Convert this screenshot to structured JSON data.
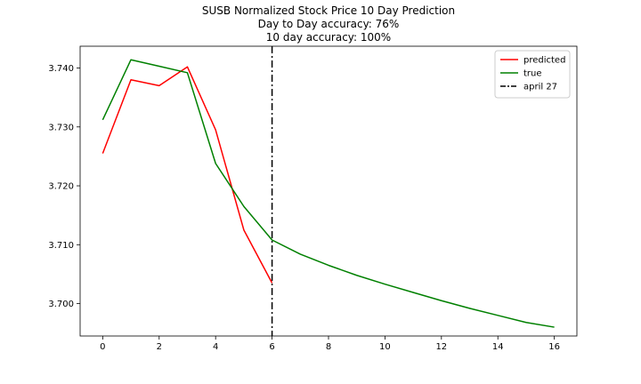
{
  "chart_data": {
    "type": "line",
    "title_lines": [
      "SUSB Normalized Stock Price 10 Day Prediction",
      "Day to Day accuracy: 76%",
      "10 day accuracy: 100%"
    ],
    "xlabel": "",
    "ylabel": "",
    "xlim": [
      -0.8,
      16.8
    ],
    "ylim": [
      3.6945,
      3.7437
    ],
    "x_ticks": [
      0,
      2,
      4,
      6,
      8,
      10,
      12,
      14,
      16
    ],
    "y_ticks": [
      3.7,
      3.71,
      3.72,
      3.73,
      3.74
    ],
    "y_tick_labels": [
      "3.700",
      "3.710",
      "3.720",
      "3.730",
      "3.740"
    ],
    "grid": false,
    "legend_position": "top-right",
    "series": [
      {
        "name": "predicted",
        "color": "#ff0000",
        "x": [
          0,
          1,
          2,
          3,
          4,
          5,
          6
        ],
        "y": [
          3.7255,
          3.738,
          3.737,
          3.7402,
          3.7295,
          3.7125,
          3.7035
        ]
      },
      {
        "name": "true",
        "color": "#008000",
        "x": [
          0,
          1,
          2,
          3,
          4,
          5,
          6,
          7,
          8,
          9,
          10,
          11,
          12,
          13,
          14,
          15,
          16
        ],
        "y": [
          3.7312,
          3.7414,
          3.7403,
          3.7392,
          3.7238,
          3.7165,
          3.7108,
          3.7084,
          3.7065,
          3.7048,
          3.7033,
          3.7019,
          3.7005,
          3.6992,
          3.698,
          3.6968,
          3.696
        ]
      }
    ],
    "vlines": [
      {
        "name": "april 27",
        "x": 6,
        "color": "#000000",
        "style": "dashdot"
      }
    ]
  }
}
